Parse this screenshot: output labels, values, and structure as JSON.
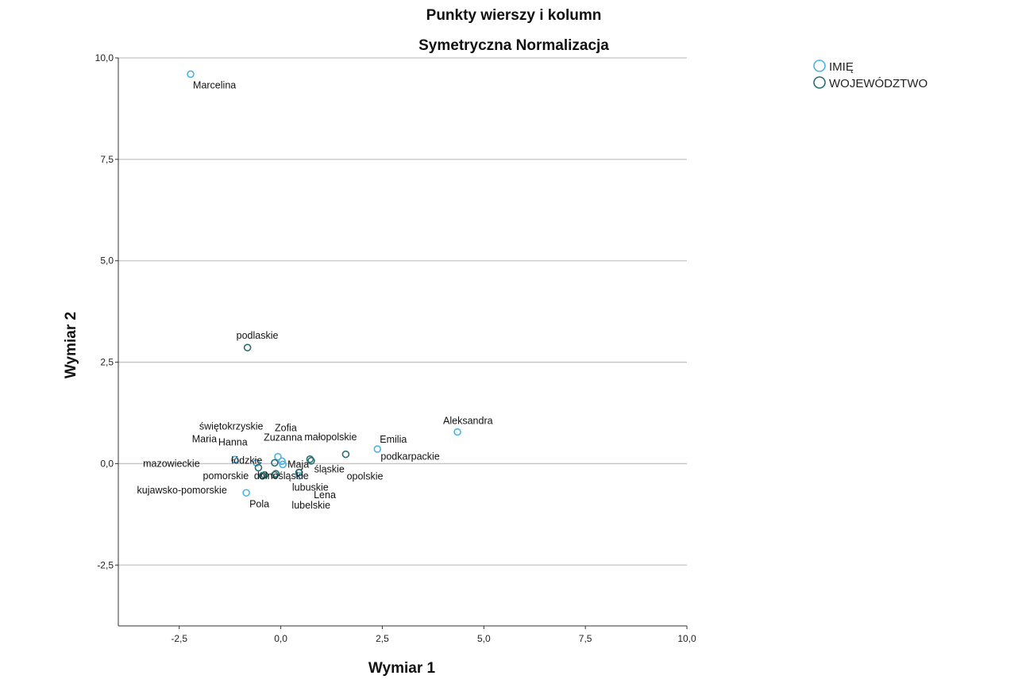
{
  "chart_data": {
    "type": "scatter",
    "title": "Punkty wierszy i kolumn",
    "subtitle": "Symetryczna Normalizacja",
    "xlabel": "Wymiar 1",
    "ylabel": "Wymiar 2",
    "xlim": [
      -4.0,
      10.0
    ],
    "ylim": [
      -4.0,
      10.0
    ],
    "x_ticks": [
      -2.5,
      0.0,
      2.5,
      5.0,
      7.5,
      10.0
    ],
    "y_ticks": [
      -2.5,
      0.0,
      2.5,
      5.0,
      7.5,
      10.0
    ],
    "x_tick_labels": [
      "-2,5",
      "0,0",
      "2,5",
      "5,0",
      "7,5",
      "10,0"
    ],
    "y_tick_labels": [
      "-2,5",
      "0,0",
      "2,5",
      "5,0",
      "7,5",
      "10,0"
    ],
    "grid": "horizontal",
    "legend_position": "top-right",
    "colors": {
      "IMIE": "#4ab3e6",
      "WOJEWODZTWO": "#2b6e72"
    },
    "series": [
      {
        "name": "IMIĘ",
        "color": "#4ab3e6",
        "points": [
          {
            "label": "Marcelina",
            "x": -2.22,
            "y": 9.6
          },
          {
            "label": "Aleksandra",
            "x": 4.35,
            "y": 0.78
          },
          {
            "label": "Emilia",
            "x": 2.38,
            "y": 0.36
          },
          {
            "label": "Maria",
            "x": -1.13,
            "y": 0.1
          },
          {
            "label": "Hanna",
            "x": -0.6,
            "y": 0.02
          },
          {
            "label": "Zofia",
            "x": -0.07,
            "y": 0.17
          },
          {
            "label": "Zuzanna",
            "x": 0.03,
            "y": 0.06
          },
          {
            "label": "Maja",
            "x": 0.05,
            "y": -0.02
          },
          {
            "label": "Pola",
            "x": -0.85,
            "y": -0.72
          },
          {
            "label": "Lena",
            "x": 0.46,
            "y": -0.3
          }
        ]
      },
      {
        "name": "WOJEWÓDZTWO",
        "color": "#2b6e72",
        "points": [
          {
            "label": "podlaskie",
            "x": -0.82,
            "y": 2.86
          },
          {
            "label": "świętokrzyskie",
            "x": -0.15,
            "y": 0.02
          },
          {
            "label": "małopolskie",
            "x": 0.72,
            "y": 0.11
          },
          {
            "label": "podkarpackie",
            "x": 1.6,
            "y": 0.23
          },
          {
            "label": "łódzkie",
            "x": -0.55,
            "y": -0.1
          },
          {
            "label": "mazowieckie",
            "x": -0.4,
            "y": -0.28
          },
          {
            "label": "pomorskie",
            "x": -0.45,
            "y": -0.3
          },
          {
            "label": "kujawsko-pomorskie",
            "x": -0.45,
            "y": -0.3
          },
          {
            "label": "lubuskie",
            "x": -0.15,
            "y": -0.28
          },
          {
            "label": "lubelskie",
            "x": -0.12,
            "y": -0.25
          },
          {
            "label": "śląskie",
            "x": 0.45,
            "y": -0.22
          },
          {
            "label": "opolskie",
            "x": 0.45,
            "y": -0.22
          },
          {
            "label": "dolnośląskie",
            "x": 0.75,
            "y": 0.07
          }
        ]
      }
    ]
  }
}
